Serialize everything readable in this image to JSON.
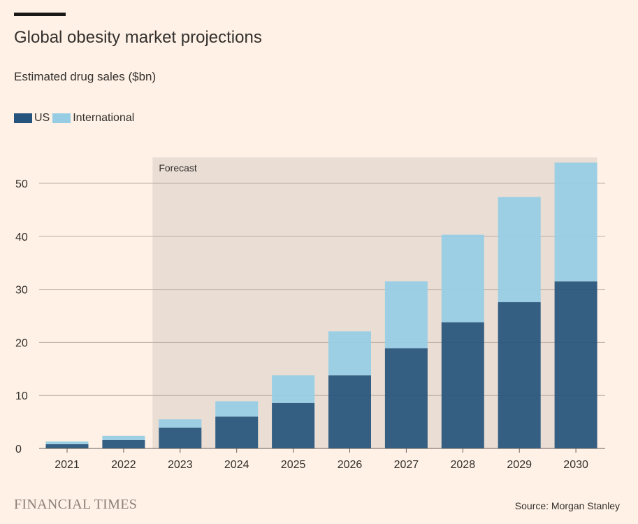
{
  "header": {
    "title": "Global obesity market projections",
    "subtitle": "Estimated drug sales ($bn)"
  },
  "legend": [
    {
      "label": "US",
      "color": "#26547C"
    },
    {
      "label": "International",
      "color": "#96CDE5"
    }
  ],
  "footer": {
    "logo": "FINANCIAL TIMES",
    "source": "Source: Morgan Stanley"
  },
  "chart_data": {
    "type": "bar",
    "stacked": true,
    "categories": [
      "2021",
      "2022",
      "2023",
      "2024",
      "2025",
      "2026",
      "2027",
      "2028",
      "2029",
      "2030"
    ],
    "series": [
      {
        "name": "US",
        "color": "#26547C",
        "values": [
          0.8,
          1.6,
          3.9,
          6.0,
          8.6,
          13.8,
          18.9,
          23.8,
          27.6,
          31.5
        ]
      },
      {
        "name": "International",
        "color": "#96CDE5",
        "values": [
          0.5,
          0.8,
          1.6,
          2.9,
          5.2,
          8.3,
          12.6,
          16.5,
          19.8,
          22.4
        ]
      }
    ],
    "ylim": [
      0,
      55
    ],
    "yticks": [
      0,
      10,
      20,
      30,
      40,
      50
    ],
    "grid": true,
    "annotation": {
      "label": "Forecast",
      "from": "2023",
      "to": "2030",
      "color": "#E9DDD4"
    },
    "legend_position": "top-left",
    "xlabel": "",
    "ylabel": ""
  }
}
